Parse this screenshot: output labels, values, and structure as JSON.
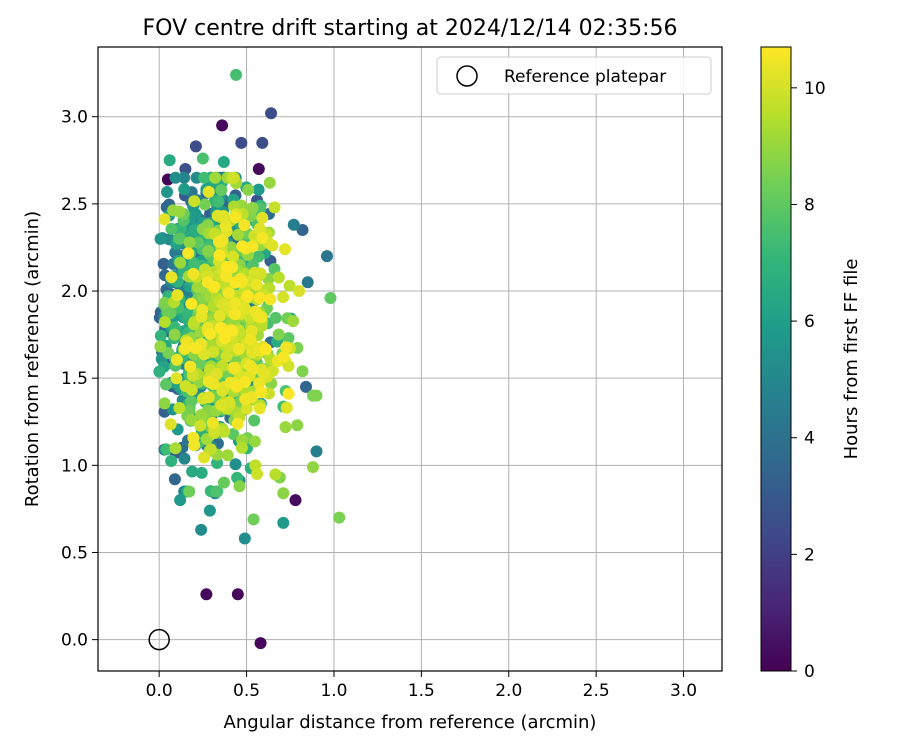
{
  "chart_data": {
    "type": "scatter",
    "title": "FOV centre drift starting at 2024/12/14 02:35:56",
    "xlabel": "Angular distance from reference (arcmin)",
    "ylabel": "Rotation from reference (arcmin)",
    "xlim": [
      -0.35,
      3.22
    ],
    "ylim": [
      -0.18,
      3.4
    ],
    "xticks": [
      "0.0",
      "0.5",
      "1.0",
      "1.5",
      "2.0",
      "2.5",
      "3.0"
    ],
    "yticks": [
      "0.0",
      "0.5",
      "1.0",
      "1.5",
      "2.0",
      "2.5",
      "3.0"
    ],
    "grid": true,
    "legend": {
      "position": "top-right",
      "entries": [
        "Reference platepar"
      ]
    },
    "colorbar": {
      "label": "Hours from first FF file",
      "range": [
        0,
        10.7
      ],
      "ticks": [
        "0",
        "2",
        "4",
        "6",
        "8",
        "10"
      ],
      "colormap": "viridis"
    },
    "reference_point": {
      "x": 0.0,
      "y": 0.0
    },
    "outliers": [
      {
        "x": 0.44,
        "y": 3.24,
        "h": 7.5
      },
      {
        "x": 0.64,
        "y": 3.02,
        "h": 2.5
      },
      {
        "x": 0.36,
        "y": 2.95,
        "h": 0.2
      },
      {
        "x": 0.59,
        "y": 2.85,
        "h": 2.5
      },
      {
        "x": 0.47,
        "y": 2.85,
        "h": 2.5
      },
      {
        "x": 0.21,
        "y": 2.83,
        "h": 2.5
      },
      {
        "x": 0.25,
        "y": 2.76,
        "h": 7.6
      },
      {
        "x": 0.06,
        "y": 2.75,
        "h": 6.5
      },
      {
        "x": 0.37,
        "y": 2.74,
        "h": 6.4
      },
      {
        "x": 0.57,
        "y": 2.7,
        "h": 0.3
      },
      {
        "x": 0.15,
        "y": 2.7,
        "h": 2.6
      },
      {
        "x": 0.05,
        "y": 2.64,
        "h": 0.1
      },
      {
        "x": 0.96,
        "y": 2.2,
        "h": 4.2
      },
      {
        "x": 0.82,
        "y": 2.35,
        "h": 3.5
      },
      {
        "x": 0.77,
        "y": 2.38,
        "h": 4.6
      },
      {
        "x": 0.85,
        "y": 2.05,
        "h": 4.3
      },
      {
        "x": 0.98,
        "y": 1.96,
        "h": 8.0
      },
      {
        "x": 0.84,
        "y": 1.45,
        "h": 3.5
      },
      {
        "x": 0.88,
        "y": 1.4,
        "h": 8.5
      },
      {
        "x": 0.9,
        "y": 1.4,
        "h": 8.6
      },
      {
        "x": 0.82,
        "y": 1.54,
        "h": 8.6
      },
      {
        "x": 0.79,
        "y": 1.23,
        "h": 8.8
      },
      {
        "x": 0.9,
        "y": 1.08,
        "h": 4.6
      },
      {
        "x": 0.88,
        "y": 0.99,
        "h": 8.9
      },
      {
        "x": 1.03,
        "y": 0.7,
        "h": 8.5
      },
      {
        "x": 0.78,
        "y": 0.8,
        "h": 0.3
      },
      {
        "x": 0.71,
        "y": 0.84,
        "h": 8.8
      },
      {
        "x": 0.71,
        "y": 0.67,
        "h": 5.8
      },
      {
        "x": 0.54,
        "y": 0.69,
        "h": 8.3
      },
      {
        "x": 0.49,
        "y": 0.58,
        "h": 5.3
      },
      {
        "x": 0.24,
        "y": 0.63,
        "h": 5.2
      },
      {
        "x": 0.29,
        "y": 0.74,
        "h": 5.6
      },
      {
        "x": 0.12,
        "y": 0.8,
        "h": 5.7
      },
      {
        "x": 0.32,
        "y": 0.84,
        "h": 4.8
      },
      {
        "x": 0.09,
        "y": 0.92,
        "h": 3.5
      },
      {
        "x": 0.03,
        "y": 1.09,
        "h": 4.4
      },
      {
        "x": 0.27,
        "y": 0.26,
        "h": 0.2
      },
      {
        "x": 0.45,
        "y": 0.26,
        "h": 0.2
      },
      {
        "x": 0.58,
        "y": -0.02,
        "h": 0.2
      },
      {
        "x": 0.56,
        "y": 0.95,
        "h": 9.9
      },
      {
        "x": 0.55,
        "y": 1.0,
        "h": 9.7
      },
      {
        "x": 0.46,
        "y": 0.88,
        "h": 8.7
      },
      {
        "x": 0.69,
        "y": 0.93,
        "h": 8.6
      },
      {
        "x": 0.73,
        "y": 1.33,
        "h": 10.2
      },
      {
        "x": 0.72,
        "y": 1.6,
        "h": 10.0
      },
      {
        "x": 0.74,
        "y": 1.57,
        "h": 10.0
      },
      {
        "x": 0.8,
        "y": 2.0,
        "h": 10.1
      },
      {
        "x": 0.72,
        "y": 2.24,
        "h": 10.3
      },
      {
        "x": 0.59,
        "y": 2.42,
        "h": 10.2
      },
      {
        "x": 0.44,
        "y": 2.44,
        "h": 10.2
      },
      {
        "x": 0.66,
        "y": 2.48,
        "h": 9.8
      },
      {
        "x": 0.44,
        "y": 2.62,
        "h": 9.2
      },
      {
        "x": 0.07,
        "y": 2.08,
        "h": 10.3
      },
      {
        "x": 0.56,
        "y": 2.52,
        "h": 2.8
      }
    ],
    "cluster": {
      "n": 1250,
      "x_range": [
        0.0,
        0.85
      ],
      "x_center": 0.33,
      "y_range": [
        0.85,
        2.65
      ],
      "y_center": 1.85,
      "h_range": [
        3.0,
        10.7
      ]
    }
  }
}
